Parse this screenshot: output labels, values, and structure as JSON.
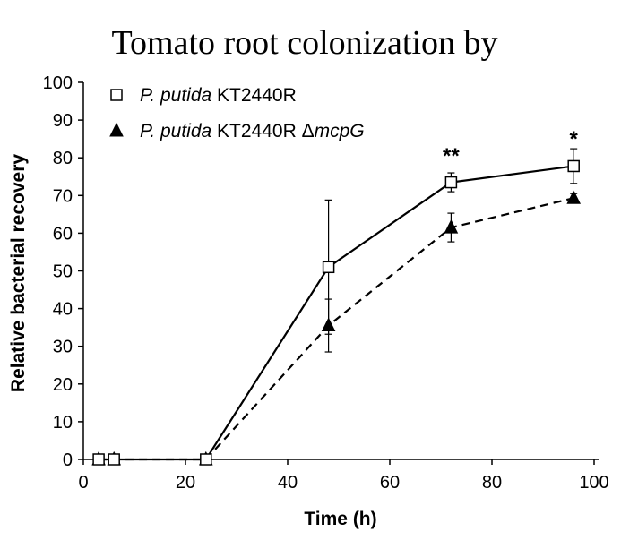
{
  "chart_data": {
    "type": "line",
    "title": "Tomato root colonization by",
    "xlabel": "Time (h)",
    "ylabel": "Relative bacterial recovery",
    "xlim": [
      0,
      100
    ],
    "ylim": [
      0,
      100
    ],
    "xticks": [
      0,
      20,
      40,
      60,
      80,
      100
    ],
    "yticks": [
      0,
      10,
      20,
      30,
      40,
      50,
      60,
      70,
      80,
      90,
      100
    ],
    "grid": false,
    "legend_position": "top-left",
    "series": [
      {
        "name": "P. putida KT2440R",
        "name_parts": [
          {
            "text": "P. putida",
            "italic": true
          },
          {
            "text": " KT2440R",
            "italic": false
          }
        ],
        "marker": "open-square",
        "line_style": "solid",
        "color": "#000000",
        "x": [
          3,
          6,
          24,
          48,
          72,
          96
        ],
        "y": [
          0,
          0,
          0,
          51,
          73.5,
          77.8
        ],
        "error": [
          0,
          0,
          0,
          17.8,
          2.5,
          4.6
        ]
      },
      {
        "name": "P. putida KT2440R ΔmcpG",
        "name_parts": [
          {
            "text": "P. putida",
            "italic": true
          },
          {
            "text": " KT2440R ",
            "italic": false
          },
          {
            "text": "Δ",
            "italic": false
          },
          {
            "text": "mcpG",
            "italic": true
          }
        ],
        "marker": "filled-triangle",
        "line_style": "dashed",
        "color": "#000000",
        "x": [
          3,
          6,
          24,
          48,
          72,
          96
        ],
        "y": [
          0,
          0,
          0,
          35.5,
          61.5,
          69.3
        ],
        "error": [
          0,
          0,
          0,
          7,
          3.8,
          1.2
        ]
      }
    ],
    "annotations": [
      {
        "text": "**",
        "x": 72,
        "y": 80.5
      },
      {
        "text": "*",
        "x": 96,
        "y": 85
      }
    ]
  }
}
